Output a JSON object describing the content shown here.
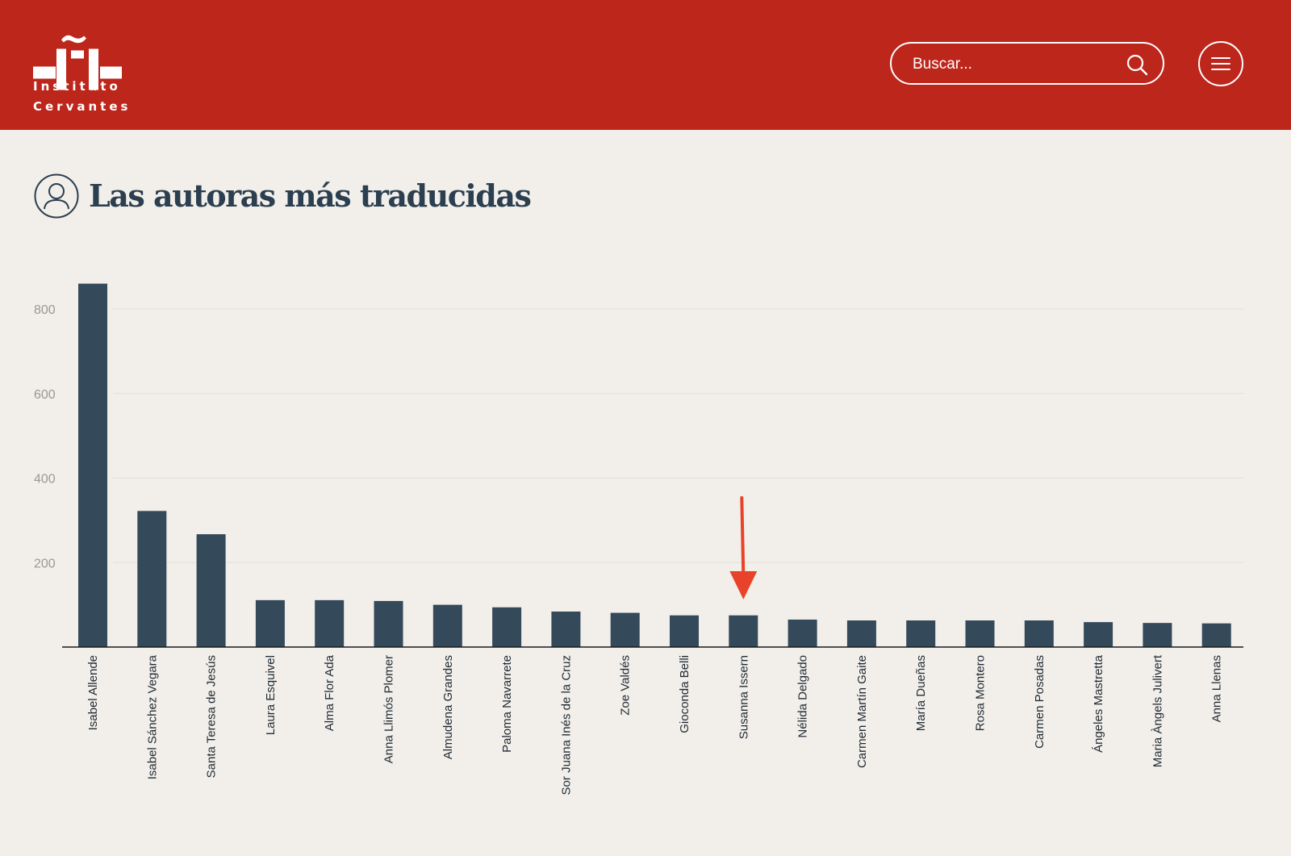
{
  "header": {
    "logo_line1": "Instituto",
    "logo_line2": "Cervantes",
    "search_placeholder": "Buscar...",
    "search_icon": "search-icon",
    "menu_icon": "hamburger-icon",
    "background_color": "#bd261b"
  },
  "page": {
    "title": "Las autoras más traducidas",
    "title_icon": "user-icon",
    "text_color": "#2c3f50"
  },
  "annotation": {
    "type": "arrow",
    "target_category": "Susanna Issern",
    "color": "#e8432a"
  },
  "chart_data": {
    "type": "bar",
    "categories": [
      "Isabel Allende",
      "Isabel Sánchez Vegara",
      "Santa Teresa de Jesús",
      "Laura Esquivel",
      "Alma Flor Ada",
      "Anna Llimós Plomer",
      "Almudena Grandes",
      "Paloma Navarrete",
      "Sor Juana Inés de la Cruz",
      "Zoe Valdés",
      "Gioconda Belli",
      "Susanna Issern",
      "Nélida Delgado",
      "Carmen Martín Gaite",
      "María Dueñas",
      "Rosa Montero",
      "Carmen Posadas",
      "Ángeles Mastretta",
      "Maria Àngels Julivert",
      "Anna Llenas"
    ],
    "values": [
      860,
      322,
      267,
      111,
      111,
      109,
      100,
      94,
      84,
      81,
      75,
      75,
      65,
      63,
      63,
      63,
      63,
      59,
      57,
      56
    ],
    "ylim": [
      0,
      860
    ],
    "yticks": [
      "200",
      "400",
      "600",
      "800"
    ],
    "ytick_values": [
      200,
      400,
      600,
      800
    ],
    "bar_color": "#34495a",
    "grid": true,
    "legend": "none",
    "title": "",
    "xlabel": "",
    "ylabel": ""
  }
}
